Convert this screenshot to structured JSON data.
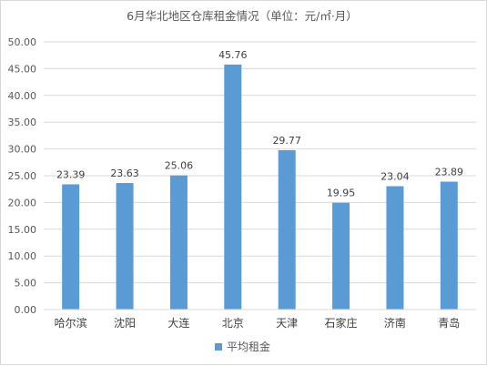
{
  "chart_data": {
    "type": "bar",
    "title": "6月华北地区仓库租金情况（单位：元/㎡·月）",
    "categories": [
      "哈尔滨",
      "沈阳",
      "大连",
      "北京",
      "天津",
      "石家庄",
      "济南",
      "青岛"
    ],
    "series": [
      {
        "name": "平均租金",
        "values": [
          23.39,
          23.63,
          25.06,
          45.76,
          29.77,
          19.95,
          23.04,
          23.89
        ],
        "labels": [
          "23.39",
          "23.63",
          "25.06",
          "45.76",
          "29.77",
          "19.95",
          "23.04",
          "23.89"
        ],
        "color": "#5B9BD5"
      }
    ],
    "yticks": [
      "0.00",
      "5.00",
      "10.00",
      "15.00",
      "20.00",
      "25.00",
      "30.00",
      "35.00",
      "40.00",
      "45.00",
      "50.00"
    ],
    "ylim": [
      0,
      50
    ],
    "grid": true,
    "legend_position": "bottom",
    "xlabel": "",
    "ylabel": ""
  }
}
